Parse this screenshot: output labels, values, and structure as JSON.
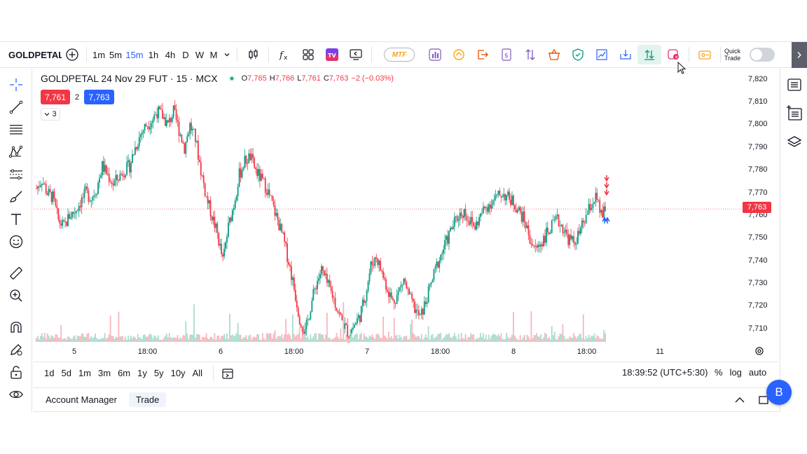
{
  "toolbar": {
    "symbol": "GOLDPETAL",
    "intervals": [
      "1m",
      "5m",
      "15m",
      "1h",
      "4h",
      "D",
      "W",
      "M"
    ],
    "active_interval": "15m",
    "mtf_label": "MTF",
    "quick_trade_line1": "Quick",
    "quick_trade_line2": "Trade"
  },
  "legend": {
    "title": "GOLDPETAL 24 Nov 29 FUT · 15 · MCX",
    "o_label": "O",
    "o_value": "7,765",
    "h_label": "H",
    "h_value": "7,766",
    "l_label": "L",
    "l_value": "7,761",
    "c_label": "C",
    "c_value": "7,763",
    "change": "−2 (−0.03%)"
  },
  "trade_box": {
    "sell": "7,761",
    "qty": "2",
    "buy": "7,763"
  },
  "indicators_count": "3",
  "last_price_label": "7,763",
  "chart_data": {
    "type": "candlestick",
    "y_ticks": [
      "7,820",
      "7,810",
      "7,800",
      "7,790",
      "7,780",
      "7,770",
      "7,760",
      "7,750",
      "7,740",
      "7,730",
      "7,720",
      "7,710"
    ],
    "ylim": [
      7705,
      7823
    ],
    "x_ticks": [
      "5",
      "18:00",
      "6",
      "18:00",
      "7",
      "18:00",
      "8",
      "18:00",
      "11"
    ],
    "last_price": 7763,
    "close_path": [
      7772,
      7776,
      7770,
      7768,
      7758,
      7755,
      7760,
      7762,
      7766,
      7770,
      7768,
      7772,
      7782,
      7778,
      7774,
      7777,
      7780,
      7782,
      7790,
      7796,
      7800,
      7802,
      7806,
      7804,
      7800,
      7806,
      7798,
      7790,
      7800,
      7794,
      7780,
      7768,
      7760,
      7752,
      7740,
      7755,
      7765,
      7778,
      7784,
      7786,
      7780,
      7776,
      7772,
      7765,
      7758,
      7750,
      7740,
      7728,
      7715,
      7708,
      7720,
      7730,
      7736,
      7730,
      7725,
      7718,
      7712,
      7708,
      7712,
      7716,
      7725,
      7738,
      7742,
      7735,
      7728,
      7722,
      7726,
      7732,
      7724,
      7719,
      7715,
      7722,
      7730,
      7738,
      7744,
      7750,
      7756,
      7760,
      7762,
      7758,
      7755,
      7760,
      7764,
      7766,
      7768,
      7770,
      7768,
      7766,
      7762,
      7758,
      7750,
      7745,
      7748,
      7752,
      7755,
      7758,
      7755,
      7750,
      7748,
      7752,
      7758,
      7764,
      7768,
      7760,
      7763
    ]
  },
  "range_bar": {
    "ranges": [
      "1d",
      "5d",
      "1m",
      "3m",
      "6m",
      "1y",
      "5y",
      "10y",
      "All"
    ],
    "time": "18:39:52 (UTC+5:30)",
    "percent": "%",
    "log": "log",
    "auto": "auto"
  },
  "bottom_panel": {
    "tabs": [
      "Account Manager",
      "Trade"
    ]
  },
  "user_initial": "B",
  "colors": {
    "up": "#089981",
    "down": "#f23645",
    "accent": "#2962ff"
  }
}
